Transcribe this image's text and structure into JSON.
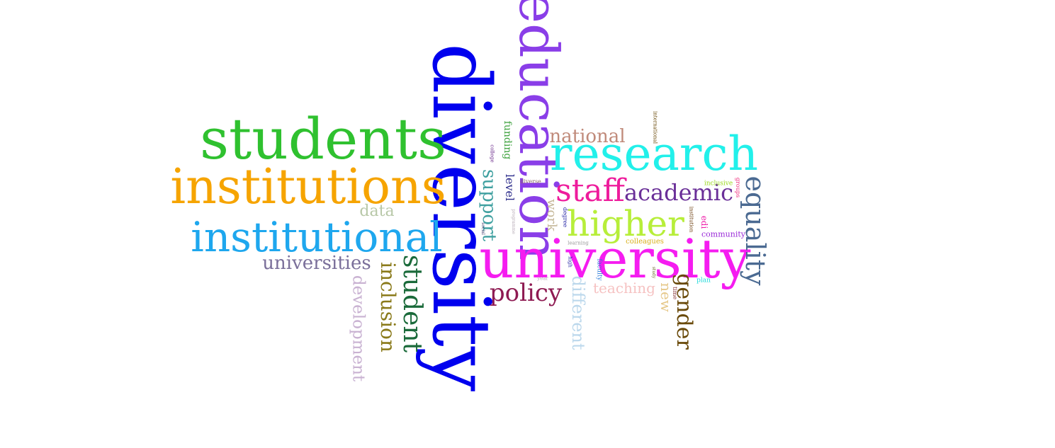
{
  "words": [
    {
      "text": "diversity",
      "color": "#0000ee"
    },
    {
      "text": "education",
      "color": "#8a3ee8"
    },
    {
      "text": "students",
      "color": "#2fc12f"
    },
    {
      "text": "research",
      "color": "#22f0ea"
    },
    {
      "text": "institutions",
      "color": "#f6a400"
    },
    {
      "text": "institutional",
      "color": "#1ea7ee"
    },
    {
      "text": "university",
      "color": "#f51cf0"
    },
    {
      "text": "higher",
      "color": "#b7ee3a"
    },
    {
      "text": "staff",
      "color": "#ee1c9c"
    },
    {
      "text": "academic",
      "color": "#6a2f98"
    },
    {
      "text": "equality",
      "color": "#4b6a92"
    },
    {
      "text": "national",
      "color": "#c08a7a"
    },
    {
      "text": "policy",
      "color": "#8e1a52"
    },
    {
      "text": "universities",
      "color": "#7a6f9a"
    },
    {
      "text": "student",
      "color": "#1a6a3a"
    },
    {
      "text": "inclusion",
      "color": "#8a7a1a"
    },
    {
      "text": "development",
      "color": "#c9b2d2"
    },
    {
      "text": "data",
      "color": "#b8c8a8"
    },
    {
      "text": "support",
      "color": "#3fa0a0"
    },
    {
      "text": "gender",
      "color": "#6a4a0a"
    },
    {
      "text": "different",
      "color": "#bcd8ec"
    },
    {
      "text": "teaching",
      "color": "#f6c2c2"
    },
    {
      "text": "work",
      "color": "#c6b89a"
    },
    {
      "text": "new",
      "color": "#e6c88a"
    },
    {
      "text": "level",
      "color": "#2a2a8a"
    },
    {
      "text": "funding",
      "color": "#3aa03a"
    },
    {
      "text": "community",
      "color": "#9a2ad8"
    },
    {
      "text": "colleagues",
      "color": "#d8b01a"
    },
    {
      "text": "edi",
      "color": "#ee1ca8"
    },
    {
      "text": "inclusive",
      "color": "#9ad81a"
    },
    {
      "text": "groups",
      "color": "#ee2a7a"
    },
    {
      "text": "institution",
      "color": "#6a3a0a"
    },
    {
      "text": "international",
      "color": "#6a4a0a"
    },
    {
      "text": "diverse",
      "color": "#8a6a6a"
    },
    {
      "text": "degree",
      "color": "#2a2aa8"
    },
    {
      "text": "programme",
      "color": "#b6aab6"
    },
    {
      "text": "learning",
      "color": "#9a9a9a"
    },
    {
      "text": "high",
      "color": "#2a2aa8"
    },
    {
      "text": "faculty",
      "color": "#2a7ad8"
    },
    {
      "text": "study",
      "color": "#6a6a2a"
    },
    {
      "text": "time",
      "color": "#8a3a3a"
    },
    {
      "text": "plan",
      "color": "#1ad8d8"
    },
    {
      "text": "year",
      "color": "#b6aab6"
    },
    {
      "text": "social",
      "color": "#3a3a6a"
    },
    {
      "text": "college",
      "color": "#6a2a8a"
    }
  ]
}
